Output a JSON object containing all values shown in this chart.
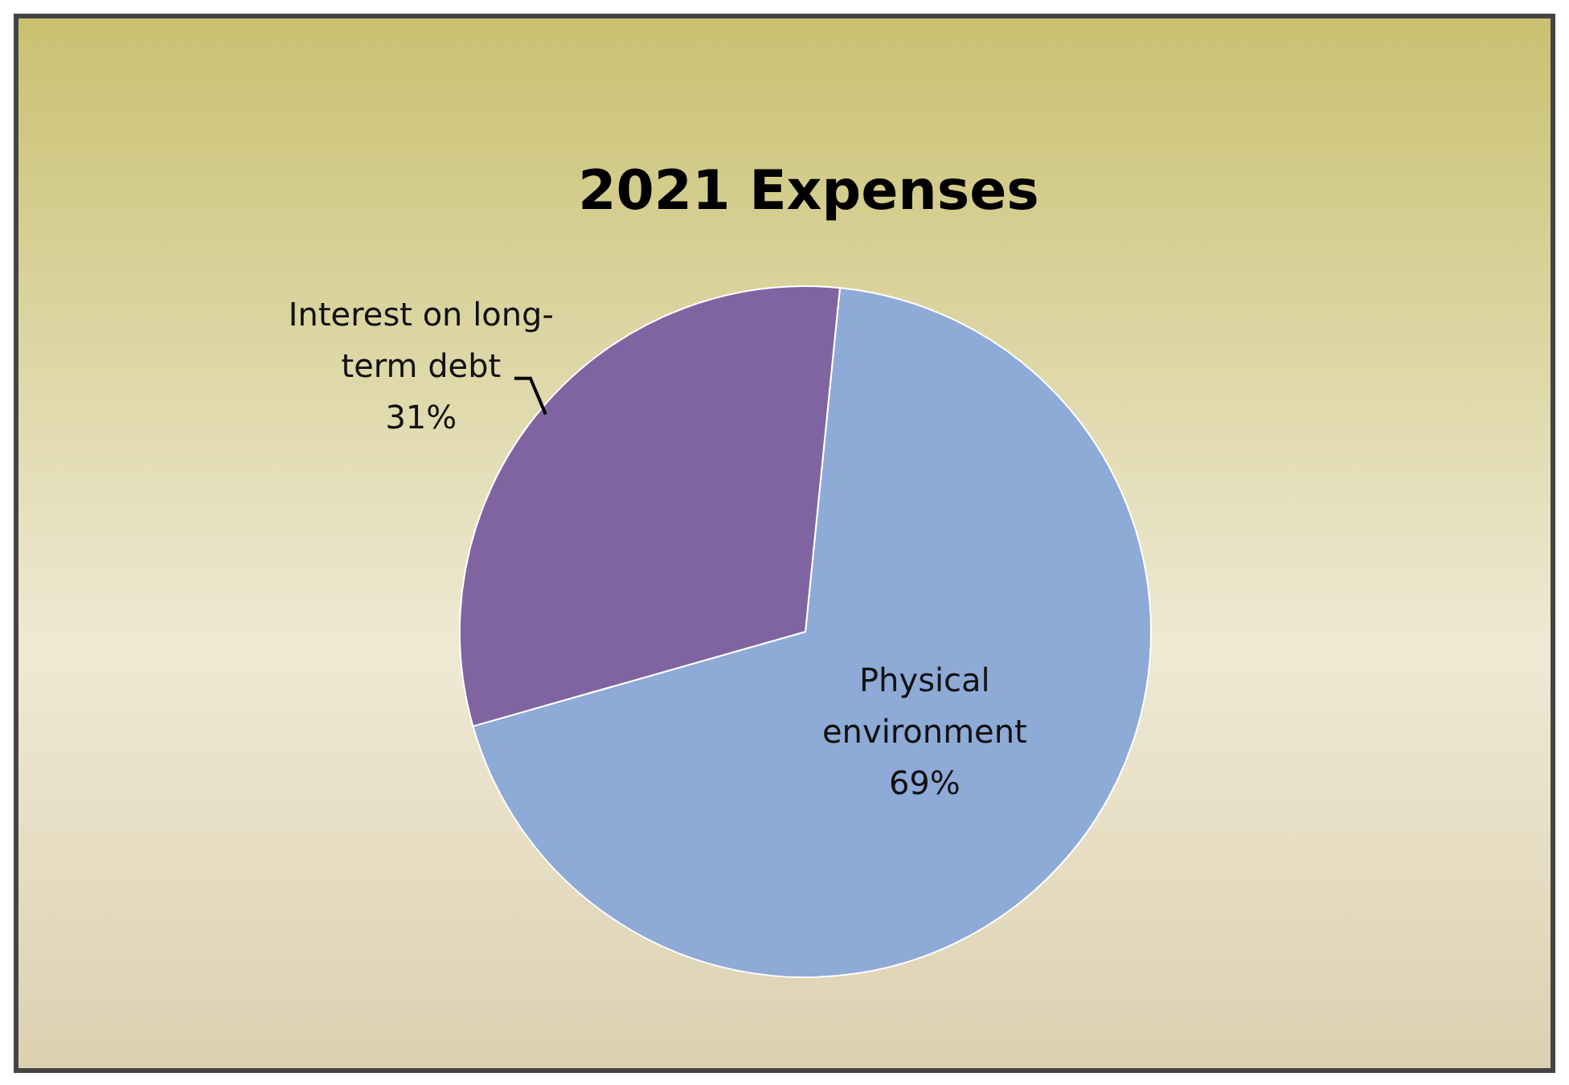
{
  "chart_data": {
    "type": "pie",
    "title": "2021 Expenses",
    "categories": [
      "Physical environment",
      "Interest on long-term debt"
    ],
    "values": [
      69,
      31
    ],
    "value_labels": [
      "69%",
      "31%"
    ],
    "colors": [
      "#8eaad6",
      "#8064a2"
    ]
  }
}
